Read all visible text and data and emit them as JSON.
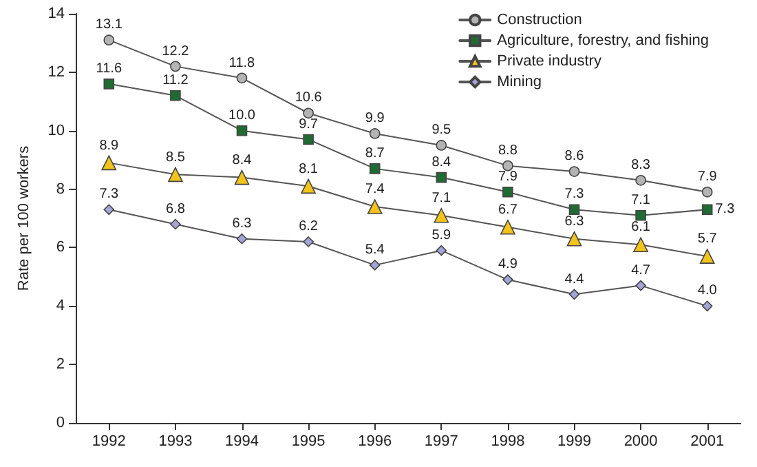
{
  "chart_data": {
    "type": "line",
    "ylabel": "Rate per 100 workers",
    "categories": [
      "1992",
      "1993",
      "1994",
      "1995",
      "1996",
      "1997",
      "1998",
      "1999",
      "2000",
      "2001"
    ],
    "series": [
      {
        "name": "Construction",
        "color": "#b4b4b4",
        "marker": "circle",
        "values": [
          13.1,
          12.2,
          11.8,
          10.6,
          9.9,
          9.5,
          8.8,
          8.6,
          8.3,
          7.9
        ],
        "value_labels": [
          "13.1",
          "12.2",
          "11.8",
          "10.6",
          "9.9",
          "9.5",
          "8.8",
          "8.6",
          "8.3",
          "7.9"
        ]
      },
      {
        "name": "Agriculture, forestry, and fishing",
        "color": "#1f6b33",
        "marker": "square",
        "values": [
          11.6,
          11.2,
          10.0,
          9.7,
          8.7,
          8.4,
          7.9,
          7.3,
          7.1,
          7.3
        ],
        "value_labels": [
          "11.6",
          "11.2",
          "10.0",
          "9.7",
          "8.7",
          "8.4",
          "7.9",
          "7.3",
          "7.1",
          "7.3"
        ]
      },
      {
        "name": "Private industry",
        "color": "#f2c31c",
        "marker": "triangle",
        "values": [
          8.9,
          8.5,
          8.4,
          8.1,
          7.4,
          7.1,
          6.7,
          6.3,
          6.1,
          5.7
        ],
        "value_labels": [
          "8.9",
          "8.5",
          "8.4",
          "8.1",
          "7.4",
          "7.1",
          "6.7",
          "6.3",
          "6.1",
          "5.7"
        ]
      },
      {
        "name": "Mining",
        "color": "#a4a4d6",
        "marker": "diamond",
        "values": [
          7.3,
          6.8,
          6.3,
          6.2,
          5.4,
          5.9,
          4.9,
          4.4,
          4.7,
          4.0
        ],
        "value_labels": [
          "7.3",
          "6.8",
          "6.3",
          "6.2",
          "5.4",
          "5.9",
          "4.9",
          "4.4",
          "4.7",
          "4.0"
        ]
      }
    ],
    "ylim": [
      0,
      14
    ],
    "yticks": [
      0,
      2,
      4,
      6,
      8,
      10,
      12,
      14
    ],
    "grid": false,
    "legend": "top right",
    "line_style": "solid"
  }
}
